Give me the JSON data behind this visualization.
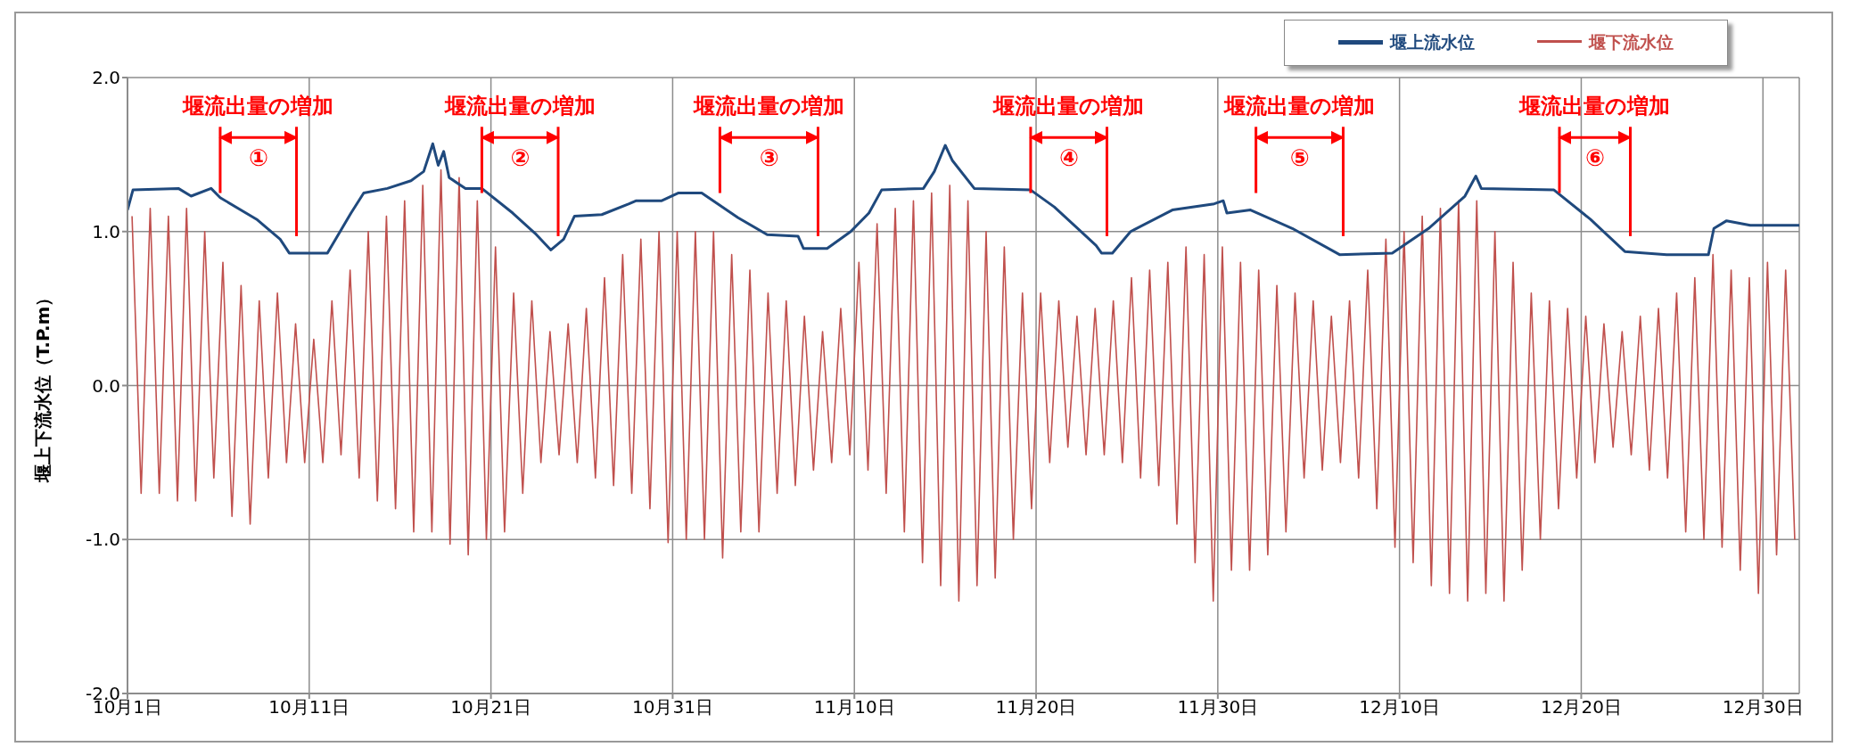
{
  "chart_data": {
    "type": "line",
    "ylabel": "堰上下流水位（T.P.m）",
    "xlim": [
      "--10-01",
      "--12-31T23:59"
    ],
    "ylim": [
      -2.0,
      2.0
    ],
    "xticks": [
      {
        "value": "--10-01",
        "label": "10月1日"
      },
      {
        "value": "--10-11",
        "label": "10月11日"
      },
      {
        "value": "--10-21",
        "label": "10月21日"
      },
      {
        "value": "--10-31",
        "label": "10月31日"
      },
      {
        "value": "--11-10",
        "label": "11月10日"
      },
      {
        "value": "--11-20",
        "label": "11月20日"
      },
      {
        "value": "--11-30",
        "label": "11月30日"
      },
      {
        "value": "--12-10",
        "label": "12月10日"
      },
      {
        "value": "--12-20",
        "label": "12月20日"
      },
      {
        "value": "--12-30",
        "label": "12月30日"
      }
    ],
    "yticks": [
      {
        "value": 2,
        "label": "2.0"
      },
      {
        "value": 1,
        "label": "1.0"
      },
      {
        "value": 0,
        "label": "0.0"
      },
      {
        "value": -1,
        "label": "-1.0"
      },
      {
        "value": -2,
        "label": "-2.0"
      }
    ],
    "grid": true,
    "legend": "top right",
    "marker": "none",
    "line_style": "solid",
    "series": [
      {
        "name": "堰下流水位",
        "color": "#c0504d",
        "x": [
          "--10-01T06:00",
          "--10-01T18:00",
          "--10-02T06:00",
          "--10-02T18:00",
          "--10-03T06:00",
          "--10-03T18:00",
          "--10-04T06:00",
          "--10-04T18:00",
          "--10-05T06:00",
          "--10-05T18:00",
          "--10-06T06:00",
          "--10-06T18:00",
          "--10-07T06:00",
          "--10-07T18:00",
          "--10-08T06:00",
          "--10-08T18:00",
          "--10-09T06:00",
          "--10-09T18:00",
          "--10-10T06:00",
          "--10-10T18:00",
          "--10-11T06:00",
          "--10-11T18:00",
          "--10-12T06:00",
          "--10-12T18:00",
          "--10-13T06:00",
          "--10-13T18:00",
          "--10-14T06:00",
          "--10-14T18:00",
          "--10-15T06:00",
          "--10-15T18:00",
          "--10-16T06:00",
          "--10-16T18:00",
          "--10-17T06:00",
          "--10-17T18:00",
          "--10-18T06:00",
          "--10-18T18:00",
          "--10-19T06:00",
          "--10-19T18:00",
          "--10-20T06:00",
          "--10-20T18:00",
          "--10-21T06:00",
          "--10-21T18:00",
          "--10-22T06:00",
          "--10-22T18:00",
          "--10-23T06:00",
          "--10-23T18:00",
          "--10-24T06:00",
          "--10-24T18:00",
          "--10-25T06:00",
          "--10-25T18:00",
          "--10-26T06:00",
          "--10-26T18:00",
          "--10-27T06:00",
          "--10-27T18:00",
          "--10-28T06:00",
          "--10-28T18:00",
          "--10-29T06:00",
          "--10-29T18:00",
          "--10-30T06:00",
          "--10-30T18:00",
          "--10-31T06:00",
          "--10-31T18:00",
          "--11-01T06:00",
          "--11-01T18:00",
          "--11-02T06:00",
          "--11-02T18:00",
          "--11-03T06:00",
          "--11-03T18:00",
          "--11-04T06:00",
          "--11-04T18:00",
          "--11-05T06:00",
          "--11-05T18:00",
          "--11-06T06:00",
          "--11-06T18:00",
          "--11-07T06:00",
          "--11-07T18:00",
          "--11-08T06:00",
          "--11-08T18:00",
          "--11-09T06:00",
          "--11-09T18:00",
          "--11-10T06:00",
          "--11-10T18:00",
          "--11-11T06:00",
          "--11-11T18:00",
          "--11-12T06:00",
          "--11-12T18:00",
          "--11-13T06:00",
          "--11-13T18:00",
          "--11-14T06:00",
          "--11-14T18:00",
          "--11-15T06:00",
          "--11-15T18:00",
          "--11-16T06:00",
          "--11-16T18:00",
          "--11-17T06:00",
          "--11-17T18:00",
          "--11-18T06:00",
          "--11-18T18:00",
          "--11-19T06:00",
          "--11-19T18:00",
          "--11-20T06:00",
          "--11-20T18:00",
          "--11-21T06:00",
          "--11-21T18:00",
          "--11-22T06:00",
          "--11-22T18:00",
          "--11-23T06:00",
          "--11-23T18:00",
          "--11-24T06:00",
          "--11-24T18:00",
          "--11-25T06:00",
          "--11-25T18:00",
          "--11-26T06:00",
          "--11-26T18:00",
          "--11-27T06:00",
          "--11-27T18:00",
          "--11-28T06:00",
          "--11-28T18:00",
          "--11-29T06:00",
          "--11-29T18:00",
          "--11-30T06:00",
          "--11-30T18:00",
          "--12-01T06:00",
          "--12-01T18:00",
          "--12-02T06:00",
          "--12-02T18:00",
          "--12-03T06:00",
          "--12-03T18:00",
          "--12-04T06:00",
          "--12-04T18:00",
          "--12-05T06:00",
          "--12-05T18:00",
          "--12-06T06:00",
          "--12-06T18:00",
          "--12-07T06:00",
          "--12-07T18:00",
          "--12-08T06:00",
          "--12-08T18:00",
          "--12-09T06:00",
          "--12-09T18:00",
          "--12-10T06:00",
          "--12-10T18:00",
          "--12-11T06:00",
          "--12-11T18:00",
          "--12-12T06:00",
          "--12-12T18:00",
          "--12-13T06:00",
          "--12-13T18:00",
          "--12-14T06:00",
          "--12-14T18:00",
          "--12-15T06:00",
          "--12-15T18:00",
          "--12-16T06:00",
          "--12-16T18:00",
          "--12-17T06:00",
          "--12-17T18:00",
          "--12-18T06:00",
          "--12-18T18:00",
          "--12-19T06:00",
          "--12-19T18:00",
          "--12-20T06:00",
          "--12-20T18:00",
          "--12-21T06:00",
          "--12-21T18:00",
          "--12-22T06:00",
          "--12-22T18:00",
          "--12-23T06:00",
          "--12-23T18:00",
          "--12-24T06:00",
          "--12-24T18:00",
          "--12-25T06:00",
          "--12-25T18:00",
          "--12-26T06:00",
          "--12-26T18:00",
          "--12-27T06:00",
          "--12-27T18:00",
          "--12-28T06:00",
          "--12-28T18:00",
          "--12-29T06:00",
          "--12-29T18:00",
          "--12-30T06:00",
          "--12-30T18:00",
          "--12-31T06:00",
          "--12-31T18:00"
        ],
        "values": [
          1.1,
          -0.7,
          1.15,
          -0.7,
          1.1,
          -0.75,
          1.15,
          -0.75,
          1.0,
          -0.6,
          0.8,
          -0.85,
          0.65,
          -0.9,
          0.55,
          -0.6,
          0.6,
          -0.5,
          0.4,
          -0.5,
          0.3,
          -0.5,
          0.55,
          -0.45,
          0.75,
          -0.6,
          1.0,
          -0.75,
          1.1,
          -0.8,
          1.2,
          -0.95,
          1.3,
          -0.95,
          1.4,
          -1.03,
          1.35,
          -1.1,
          1.2,
          -1.0,
          0.9,
          -0.95,
          0.6,
          -0.7,
          0.55,
          -0.5,
          0.35,
          -0.45,
          0.4,
          -0.5,
          0.5,
          -0.6,
          0.7,
          -0.65,
          0.85,
          -0.7,
          0.95,
          -0.8,
          1.0,
          -1.02,
          1.0,
          -1.0,
          1.0,
          -1.0,
          1.0,
          -1.12,
          0.85,
          -0.95,
          0.75,
          -0.95,
          0.6,
          -0.7,
          0.55,
          -0.65,
          0.45,
          -0.55,
          0.35,
          -0.5,
          0.5,
          -0.45,
          0.8,
          -0.55,
          1.05,
          -0.7,
          1.15,
          -0.95,
          1.2,
          -1.15,
          1.25,
          -1.3,
          1.3,
          -1.4,
          1.2,
          -1.3,
          1.0,
          -1.25,
          0.9,
          -1.0,
          0.6,
          -0.8,
          0.6,
          -0.5,
          0.55,
          -0.4,
          0.45,
          -0.45,
          0.5,
          -0.45,
          0.55,
          -0.5,
          0.7,
          -0.6,
          0.75,
          -0.65,
          0.8,
          -0.9,
          0.9,
          -1.15,
          0.85,
          -1.4,
          0.9,
          -1.2,
          0.8,
          -1.2,
          0.75,
          -1.1,
          0.65,
          -0.95,
          0.6,
          -0.6,
          0.55,
          -0.55,
          0.45,
          -0.5,
          0.55,
          -0.6,
          0.75,
          -0.8,
          0.95,
          -1.05,
          1.0,
          -1.15,
          1.1,
          -1.3,
          1.15,
          -1.35,
          1.2,
          -1.4,
          1.2,
          -1.35,
          1.0,
          -1.4,
          0.8,
          -1.2,
          0.6,
          -1.0,
          0.55,
          -0.8,
          0.5,
          -0.6,
          0.45,
          -0.5,
          0.4,
          -0.4,
          0.35,
          -0.45,
          0.45,
          -0.55,
          0.5,
          -0.6,
          0.6,
          -0.95,
          0.7,
          -1.0,
          0.85,
          -1.05,
          0.75,
          -1.2,
          0.7,
          -1.35,
          0.8,
          -1.1,
          0.75,
          -1.0
        ]
      },
      {
        "name": "堰上流水位",
        "color": "#1f497d",
        "x": [
          "--10-01",
          "--10-01T07:12",
          "--10-03T19:12",
          "--10-04T12:00",
          "--10-05T14:24",
          "--10-06T02:24",
          "--10-08T02:24",
          "--10-09T09:36",
          "--10-09T21:36",
          "--10-12",
          "--10-13T07:12",
          "--10-14",
          "--10-15T07:12",
          "--10-16T14:24",
          "--10-17T07:12",
          "--10-17T19:12",
          "--10-18T02:24",
          "--10-18T09:36",
          "--10-18T16:48",
          "--10-19T14:24",
          "--10-20T12:00",
          "--10-22T04:48",
          "--10-23T12:00",
          "--10-24T07:12",
          "--10-25",
          "--10-25T14:24",
          "--10-27T02:24",
          "--10-28T14:24",
          "--10-29",
          "--10-30T09:36",
          "--10-31T07:12",
          "--11-01T14:24",
          "--11-03T14:24",
          "--11-05T04:48",
          "--11-06T21:36",
          "--11-07T04:48",
          "--11-08T12:00",
          "--11-09T19:12",
          "--11-10T19:12",
          "--11-11T12:00",
          "--11-13T19:12",
          "--11-14T09:36",
          "--11-15",
          "--11-15T09:36",
          "--11-16T14:24",
          "--11-19T16:48",
          "--11-21",
          "--11-23T07:12",
          "--11-23T14:24",
          "--11-24T04:48",
          "--11-25T04:48",
          "--11-27T12:00",
          "--11-29T19:12",
          "--11-30T07:12",
          "--11-30T12:00",
          "--12-01T19:12",
          "--12-04T02:24",
          "--12-06T16:48",
          "--12-09T14:24",
          "--12-11T14:24",
          "--12-13T14:24",
          "--12-14T04:48",
          "--12-14T12:00",
          "--12-18T12:00",
          "--12-20T12:00",
          "--12-22T09:36",
          "--12-24T16:48",
          "--12-27",
          "--12-27T07:12",
          "--12-28",
          "--12-29T07:12",
          "--12-31T23:59"
        ],
        "values": [
          1.14,
          1.27,
          1.28,
          1.23,
          1.28,
          1.22,
          1.08,
          0.95,
          0.86,
          0.86,
          1.12,
          1.25,
          1.28,
          1.33,
          1.39,
          1.57,
          1.43,
          1.52,
          1.35,
          1.28,
          1.28,
          1.12,
          0.98,
          0.88,
          0.95,
          1.1,
          1.11,
          1.18,
          1.2,
          1.2,
          1.25,
          1.25,
          1.09,
          0.98,
          0.97,
          0.89,
          0.89,
          1.0,
          1.12,
          1.27,
          1.28,
          1.39,
          1.56,
          1.46,
          1.28,
          1.27,
          1.16,
          0.91,
          0.86,
          0.86,
          1.0,
          1.14,
          1.18,
          1.2,
          1.12,
          1.14,
          1.02,
          0.85,
          0.86,
          1.02,
          1.23,
          1.36,
          1.28,
          1.27,
          1.08,
          0.87,
          0.85,
          0.85,
          1.02,
          1.07,
          1.04,
          1.04
        ]
      }
    ],
    "ref_lines": [
      {
        "axis": "x",
        "value": "--10-06T02:24",
        "label": "①",
        "color": "#ff0000"
      },
      {
        "axis": "x",
        "value": "--10-10T07:12",
        "label": null,
        "color": "#ff0000"
      },
      {
        "axis": "x",
        "value": "--10-20T12:00",
        "label": "②",
        "color": "#ff0000"
      },
      {
        "axis": "x",
        "value": "--10-24T16:48",
        "label": null,
        "color": "#ff0000"
      },
      {
        "axis": "x",
        "value": "--11-02T14:24",
        "label": "③",
        "color": "#ff0000"
      },
      {
        "axis": "x",
        "value": "--11-08",
        "label": null,
        "color": "#ff0000"
      },
      {
        "axis": "x",
        "value": "--11-19T16:48",
        "label": "④",
        "color": "#ff0000"
      },
      {
        "axis": "x",
        "value": "--11-23T21:36",
        "label": null,
        "color": "#ff0000"
      },
      {
        "axis": "x",
        "value": "--12-02T02:24",
        "label": "⑤",
        "color": "#ff0000"
      },
      {
        "axis": "x",
        "value": "--12-06T21:36",
        "label": null,
        "color": "#ff0000"
      },
      {
        "axis": "x",
        "value": "--12-18T19:12",
        "label": "⑥",
        "color": "#ff0000"
      },
      {
        "axis": "x",
        "value": "--12-22T16:48",
        "label": null,
        "color": "#ff0000"
      }
    ],
    "annotations": [
      "堰流出量の増加",
      "堰流出量の増加",
      "堰流出量の増加",
      "堰流出量の増加",
      "堰流出量の増加",
      "堰流出量の増加"
    ]
  }
}
